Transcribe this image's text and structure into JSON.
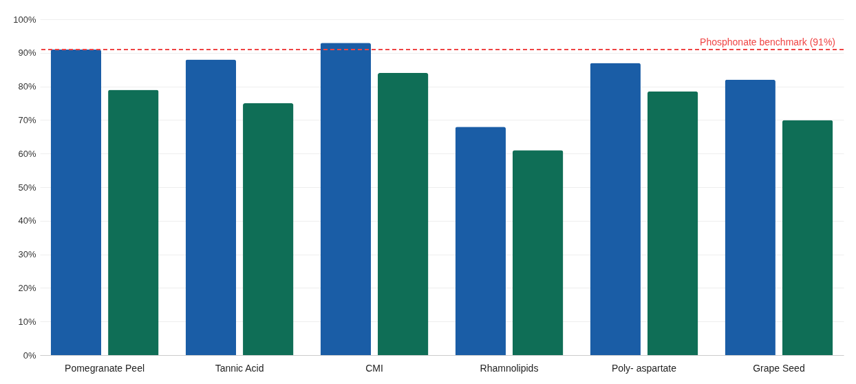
{
  "chart_data": {
    "type": "bar",
    "categories": [
      "Pomegranate Peel",
      "Tannic Acid",
      "CMI",
      "Rhamnolipids",
      "Poly- aspartate",
      "Grape Seed"
    ],
    "series": [
      {
        "color": "#1a5da6",
        "values": [
          91,
          88,
          93,
          68,
          87,
          82
        ]
      },
      {
        "color": "#0f6e56",
        "values": [
          79,
          75,
          84,
          61,
          78.5,
          70
        ]
      }
    ],
    "ylim": [
      0,
      100
    ],
    "yticks": [
      {
        "value": 0,
        "label": "0%"
      },
      {
        "value": 10,
        "label": "10%"
      },
      {
        "value": 20,
        "label": "20%"
      },
      {
        "value": 30,
        "label": "30%"
      },
      {
        "value": 40,
        "label": "40%"
      },
      {
        "value": 50,
        "label": "50%"
      },
      {
        "value": 60,
        "label": "60%"
      },
      {
        "value": 70,
        "label": "70%"
      },
      {
        "value": 80,
        "label": "80%"
      },
      {
        "value": 90,
        "label": "90%"
      },
      {
        "value": 100,
        "label": "100%"
      }
    ],
    "grid": "y",
    "ref_lines": [
      {
        "axis": "y",
        "value": 91,
        "label": "Phosphonate benchmark (91%)",
        "color": "#ef4444",
        "line_style": "dashed"
      }
    ]
  }
}
